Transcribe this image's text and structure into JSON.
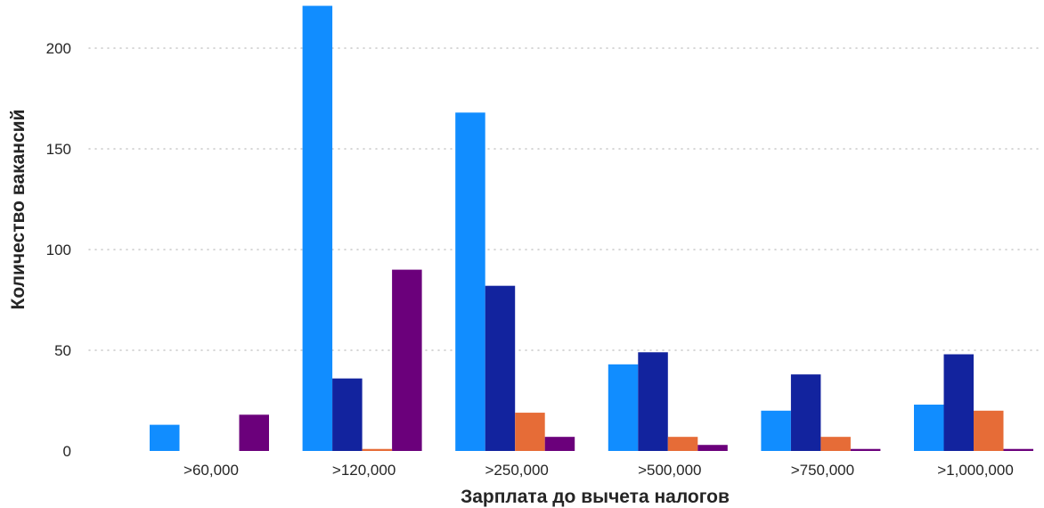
{
  "chart_data": {
    "type": "bar",
    "xlabel": "Зарплата до вычета налогов",
    "ylabel": "Количество вакансий",
    "categories": [
      ">60,000",
      ">120,000",
      ">250,000",
      ">500,000",
      ">750,000",
      ">1,000,000"
    ],
    "ylim": [
      0,
      225
    ],
    "yticks": [
      0,
      50,
      100,
      150,
      200
    ],
    "grid": true,
    "series": [
      {
        "color": "#118dff",
        "values": [
          13,
          221,
          168,
          43,
          20,
          23
        ]
      },
      {
        "color": "#12239e",
        "values": [
          0,
          36,
          82,
          49,
          38,
          48
        ]
      },
      {
        "color": "#e66c37",
        "values": [
          0,
          1,
          19,
          7,
          7,
          20
        ]
      },
      {
        "color": "#6b007b",
        "values": [
          18,
          90,
          7,
          3,
          1,
          1
        ]
      }
    ]
  }
}
